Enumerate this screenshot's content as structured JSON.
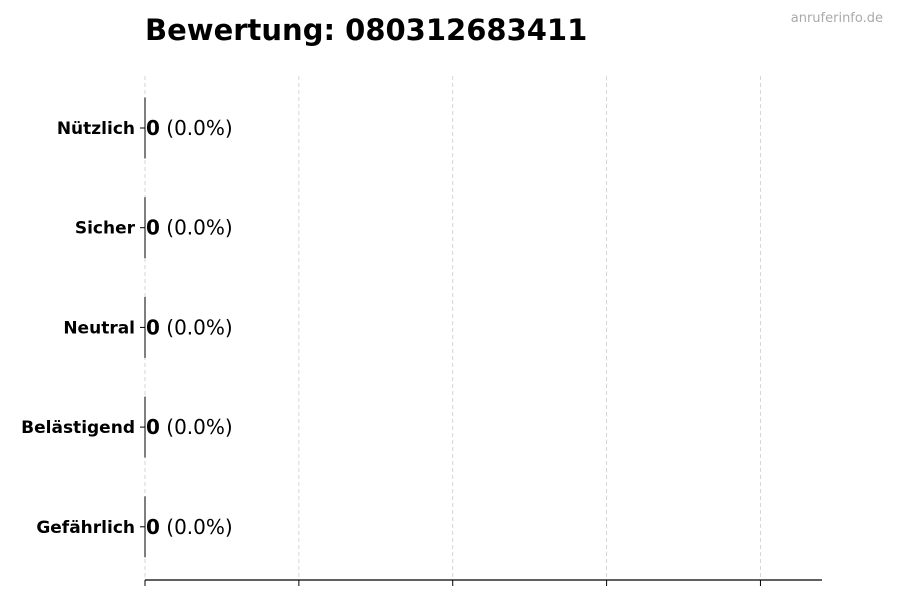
{
  "watermark": "anruferinfo.de",
  "chart_data": {
    "type": "bar",
    "orientation": "horizontal",
    "title": "Bewertung: 080312683411",
    "categories": [
      "Nützlich",
      "Sicher",
      "Neutral",
      "Belästigend",
      "Gefährlich"
    ],
    "values": [
      0,
      0,
      0,
      0,
      0
    ],
    "labels": [
      {
        "count": "0",
        "pct": "(0.0%)"
      },
      {
        "count": "0",
        "pct": "(0.0%)"
      },
      {
        "count": "0",
        "pct": "(0.0%)"
      },
      {
        "count": "0",
        "pct": "(0.0%)"
      },
      {
        "count": "0",
        "pct": "(0.0%)"
      }
    ],
    "xlim": [
      0,
      4.4
    ],
    "xticks": [
      0,
      1,
      2,
      3,
      4
    ],
    "xtick_labels_shown": false,
    "grid": "vertical dashed",
    "xlabel": "",
    "ylabel": ""
  }
}
